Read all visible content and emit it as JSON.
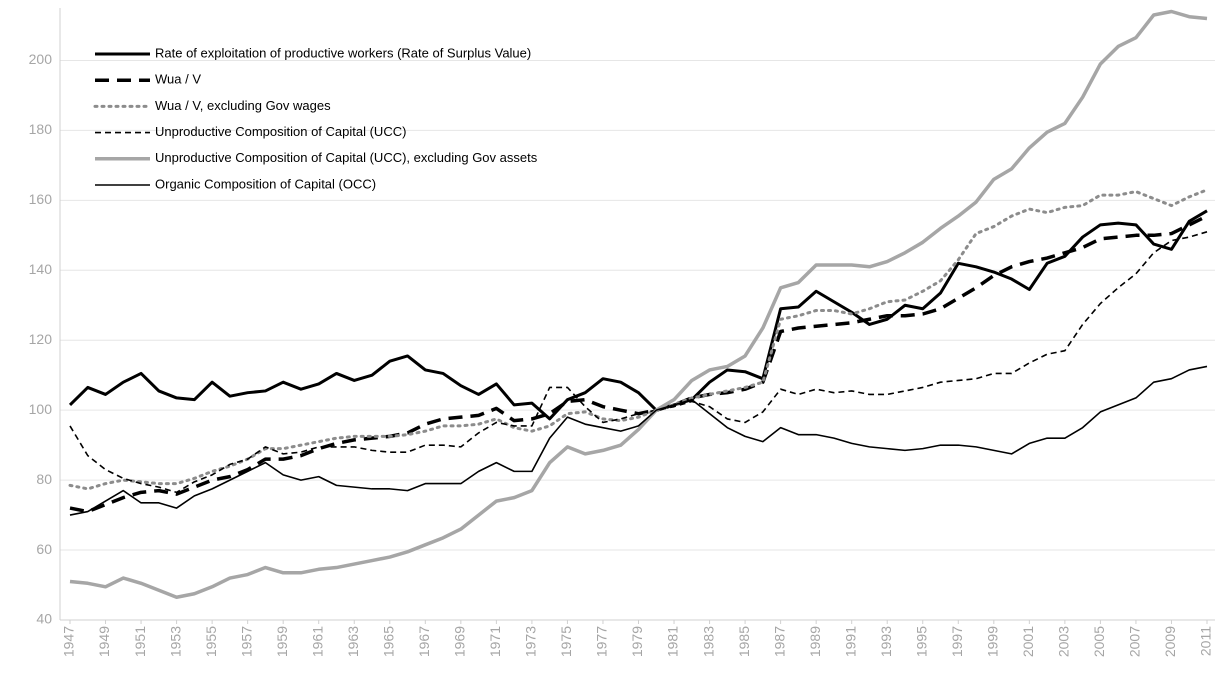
{
  "chart_data": {
    "type": "line",
    "x": [
      1947,
      1948,
      1949,
      1950,
      1951,
      1952,
      1953,
      1954,
      1955,
      1956,
      1957,
      1958,
      1959,
      1960,
      1961,
      1962,
      1963,
      1964,
      1965,
      1966,
      1967,
      1968,
      1969,
      1970,
      1971,
      1972,
      1973,
      1974,
      1975,
      1976,
      1977,
      1978,
      1979,
      1980,
      1981,
      1982,
      1983,
      1984,
      1985,
      1986,
      1987,
      1988,
      1989,
      1990,
      1991,
      1992,
      1993,
      1994,
      1995,
      1996,
      1997,
      1998,
      1999,
      2000,
      2001,
      2002,
      2003,
      2004,
      2005,
      2006,
      2007,
      2008,
      2009,
      2010,
      2011
    ],
    "xlim": [
      1947,
      2011
    ],
    "xticks": [
      1947,
      1949,
      1951,
      1953,
      1955,
      1957,
      1959,
      1961,
      1963,
      1965,
      1967,
      1969,
      1971,
      1973,
      1975,
      1977,
      1979,
      1981,
      1983,
      1985,
      1987,
      1989,
      1991,
      1993,
      1995,
      1997,
      1999,
      2001,
      2003,
      2005,
      2007,
      2009,
      2011
    ],
    "ylim": [
      40,
      215
    ],
    "yticks": [
      40,
      60,
      80,
      100,
      120,
      140,
      160,
      180,
      200
    ],
    "grid": true,
    "legend": "top-left",
    "series": [
      {
        "name": "Rate of exploitation of productive workers (Rate of Surplus Value)",
        "color": "#000000",
        "dash": "solid",
        "linewidth": 3,
        "values": [
          101.5,
          106.5,
          104.5,
          108,
          110.5,
          105.5,
          103.5,
          103,
          108,
          104,
          105,
          105.5,
          108,
          106,
          107.5,
          110.5,
          108.5,
          110,
          114,
          115.5,
          111.5,
          110.5,
          107,
          104.5,
          107.5,
          101.5,
          102,
          97.5,
          103,
          105,
          109,
          108,
          105,
          100,
          101.5,
          103,
          108,
          111.5,
          111,
          109,
          129,
          129.5,
          134,
          131,
          128,
          124.5,
          126,
          130,
          129,
          133.5,
          142,
          141,
          139.5,
          137.5,
          134.5,
          142,
          144,
          149.5,
          153,
          153.5,
          153,
          147.5,
          146,
          154,
          157
        ]
      },
      {
        "name": "Wua / V",
        "color": "#000000",
        "dash": "dashed",
        "linewidth": 3.5,
        "values": [
          72,
          71,
          73,
          75,
          76.5,
          77,
          76,
          78,
          80,
          81,
          83,
          86,
          86,
          87,
          89,
          90.5,
          91.5,
          92,
          92.5,
          93.5,
          96,
          97.5,
          98,
          98.5,
          100.5,
          97,
          97.5,
          99,
          102.5,
          103,
          101,
          100,
          99,
          100,
          101.5,
          103.5,
          104.5,
          105,
          106,
          108,
          122.5,
          123.5,
          124,
          124.5,
          125,
          126,
          127,
          127,
          127.5,
          129,
          132,
          135,
          138.5,
          141,
          142.5,
          143.5,
          145,
          146.5,
          149,
          149.5,
          150,
          150,
          150.5,
          153,
          155.5
        ]
      },
      {
        "name": "Wua / V, excluding Gov wages",
        "color": "#8c8c8c",
        "dash": "dotted",
        "linewidth": 3,
        "values": [
          78.5,
          77.5,
          79,
          80,
          79.5,
          79,
          79,
          80.5,
          82.5,
          84,
          86,
          89,
          89,
          90,
          91,
          92,
          92.5,
          92.5,
          92.5,
          93,
          94,
          95.5,
          95.5,
          96,
          97.5,
          95,
          94,
          95.5,
          99,
          99.5,
          97.5,
          97,
          98,
          100,
          101.5,
          103.5,
          104.5,
          105.5,
          106.5,
          108,
          126,
          127,
          128.5,
          128.5,
          127.5,
          129,
          131,
          131.5,
          134,
          137,
          143,
          150.5,
          152.5,
          155.5,
          157.5,
          156.5,
          158,
          158.5,
          161.5,
          161.5,
          162.5,
          160.5,
          158.5,
          161,
          163
        ]
      },
      {
        "name": "Unproductive Composition of Capital (UCC)",
        "color": "#000000",
        "dash": "dashed",
        "linewidth": 1.6,
        "values": [
          95.5,
          87,
          83,
          80.5,
          79,
          78,
          76.5,
          79.5,
          81.5,
          84.5,
          86,
          89.5,
          87.5,
          88,
          89.5,
          89.5,
          89.5,
          88.5,
          88,
          88,
          90,
          90,
          89.5,
          93.5,
          96.5,
          95.5,
          95.5,
          106.5,
          106.5,
          101,
          96.5,
          97.5,
          99,
          100,
          101,
          102.5,
          101,
          97.5,
          96.5,
          99.5,
          106,
          104.5,
          106,
          105,
          105.5,
          104.5,
          104.5,
          105.5,
          106.5,
          108,
          108.5,
          109,
          110.5,
          110.5,
          113.5,
          116,
          117,
          124.5,
          130.5,
          135,
          139,
          145,
          148.5,
          149.5,
          151
        ]
      },
      {
        "name": "Unproductive Composition of Capital (UCC), excluding Gov assets",
        "color": "#a6a6a6",
        "dash": "solid",
        "linewidth": 3.5,
        "values": [
          51,
          50.5,
          49.5,
          52,
          50.5,
          48.5,
          46.5,
          47.5,
          49.5,
          52,
          53,
          55,
          53.5,
          53.5,
          54.5,
          55,
          56,
          57,
          58,
          59.5,
          61.5,
          63.5,
          66,
          70,
          74,
          75,
          77,
          85,
          89.5,
          87.5,
          88.5,
          90,
          94.5,
          100,
          103,
          108.5,
          111.5,
          112.5,
          115.5,
          123.5,
          135,
          136.5,
          141.5,
          141.5,
          141.5,
          141,
          142.5,
          145,
          148,
          152,
          155.5,
          159.5,
          166,
          169,
          175,
          179.5,
          182,
          189.5,
          199,
          204,
          206.5,
          213,
          214,
          212.5,
          212
        ]
      },
      {
        "name": "Organic Composition of Capital (OCC)",
        "color": "#000000",
        "dash": "solid",
        "linewidth": 1.6,
        "values": [
          70,
          71,
          74,
          77,
          73.5,
          73.5,
          72,
          75.5,
          77.5,
          80,
          82.5,
          85,
          81.5,
          80,
          81,
          78.5,
          78,
          77.5,
          77.5,
          77,
          79,
          79,
          79,
          82.5,
          85,
          82.5,
          82.5,
          92,
          98,
          96,
          95,
          94,
          95.5,
          100,
          101.5,
          103,
          99,
          95,
          92.5,
          91,
          95,
          93,
          93,
          92,
          90.5,
          89.5,
          89,
          88.5,
          89,
          90,
          90,
          89.5,
          88.5,
          87.5,
          90.5,
          92,
          92,
          95,
          99.5,
          101.5,
          103.5,
          108,
          109,
          111.5,
          112.5
        ]
      }
    ]
  }
}
